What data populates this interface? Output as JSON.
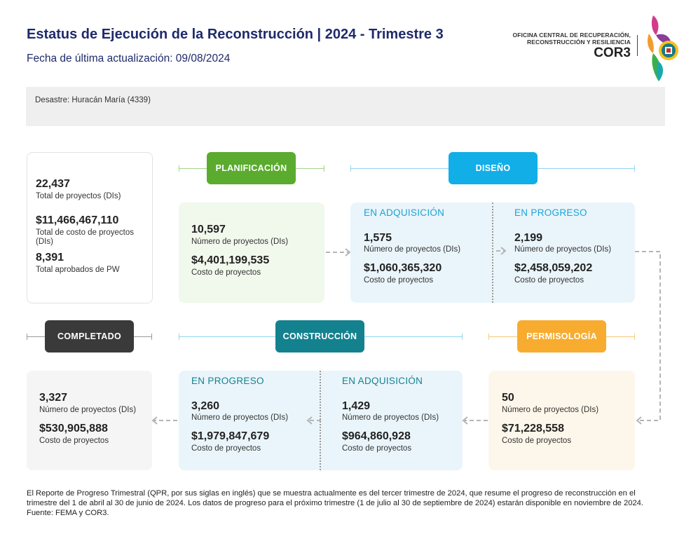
{
  "header": {
    "title": "Estatus de Ejecución de la Reconstrucción | 2024 - Trimestre 3",
    "subtitle": "Fecha de última actualización: 09/08/2024",
    "org_line1": "OFICINA CENTRAL DE RECUPERACIÓN,",
    "org_line2": "RECONSTRUCCIÓN Y RESILIENCIA",
    "org_acronym": "COR3"
  },
  "disaster": "Desastre: Huracán María (4339)",
  "totals": {
    "projects_value": "22,437",
    "projects_label": "Total de proyectos (DIs)",
    "cost_value": "$11,466,467,110",
    "cost_label": "Total de costo de proyectos (DIs)",
    "approved_value": "8,391",
    "approved_label": "Total aprobados de PW"
  },
  "phases": {
    "planificacion": {
      "label": "PLANIFICACIÓN",
      "projects_value": "10,597",
      "projects_label": "Número de proyectos (DIs)",
      "cost_value": "$4,401,199,535",
      "cost_label": "Costo de proyectos"
    },
    "diseno": {
      "label": "DISEÑO",
      "adquisicion": {
        "title": "EN ADQUISICIÓN",
        "projects_value": "1,575",
        "projects_label": "Número de proyectos (DIs)",
        "cost_value": "$1,060,365,320",
        "cost_label": "Costo de proyectos"
      },
      "progreso": {
        "title": "EN PROGRESO",
        "projects_value": "2,199",
        "projects_label": "Número de proyectos (DIs)",
        "cost_value": "$2,458,059,202",
        "cost_label": "Costo de proyectos"
      }
    },
    "permisologia": {
      "label": "PERMISOLOGÍA",
      "projects_value": "50",
      "projects_label": "Número de proyectos (DIs)",
      "cost_value": "$71,228,558",
      "cost_label": "Costo de proyectos"
    },
    "construccion": {
      "label": "CONSTRUCCIÓN",
      "progreso": {
        "title": "EN PROGRESO",
        "projects_value": "3,260",
        "projects_label": "Número de proyectos (DIs)",
        "cost_value": "$1,979,847,679",
        "cost_label": "Costo de proyectos"
      },
      "adquisicion": {
        "title": "EN ADQUISICIÓN",
        "projects_value": "1,429",
        "projects_label": "Número de proyectos (DIs)",
        "cost_value": "$964,860,928",
        "cost_label": "Costo de proyectos"
      }
    },
    "completado": {
      "label": "COMPLETADO",
      "projects_value": "3,327",
      "projects_label": "Número de proyectos (DIs)",
      "cost_value": "$530,905,888",
      "cost_label": "Costo de proyectos"
    }
  },
  "footer": "El Reporte de Progreso Trimestral (QPR, por sus siglas en inglés) que se muestra actualmente es del  tercer trimestre de 2024, que resume el progreso de reconstrucción en el trimestre del  1 de abril al 30 de junio de 2024. Los datos de progreso para el próximo trimestre (1 de julio al 30 de septiembre de 2024) estarán disponible en  noviembre de 2024. Fuente: FEMA y COR3.",
  "colors": {
    "title": "#1f2a6b",
    "planificacion": "#5aab2e",
    "diseno": "#12aee8",
    "permisologia": "#f7ac2f",
    "construccion": "#14818f",
    "completado": "#3a3a3a"
  }
}
